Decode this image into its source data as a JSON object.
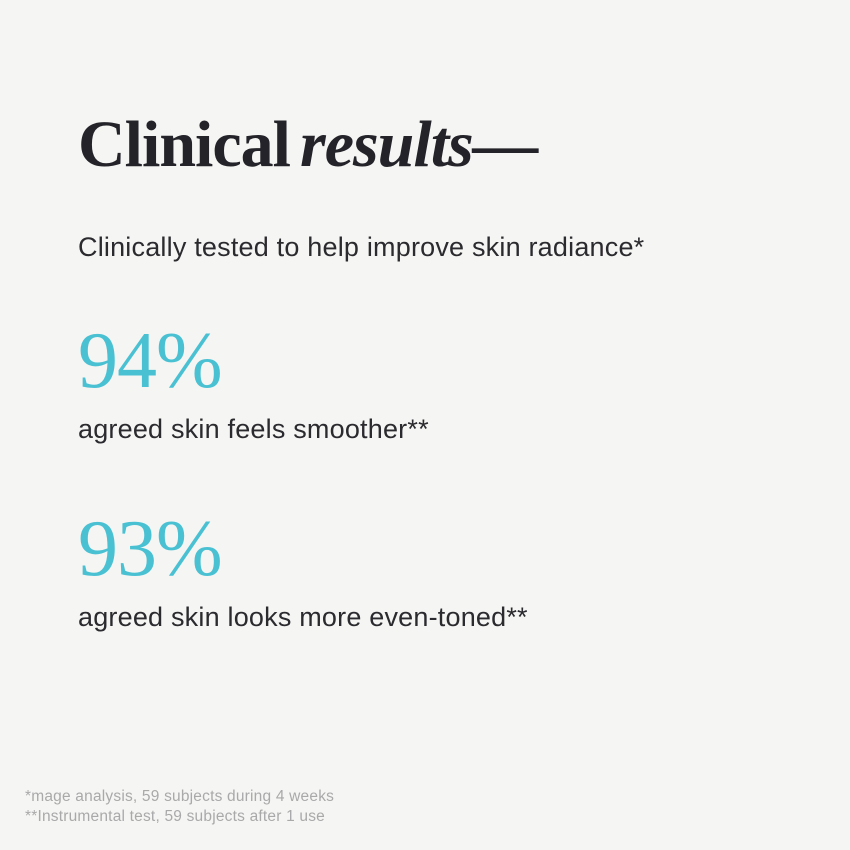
{
  "page": {
    "title": {
      "regular": "Clinical",
      "italic": "results—"
    },
    "subtitle": "Clinically tested to help improve skin radiance*",
    "stats": [
      {
        "value": "94%",
        "label": "agreed skin feels smoother**"
      },
      {
        "value": "93%",
        "label": "agreed skin looks more even-toned**"
      }
    ],
    "footnotes": [
      "*mage analysis, 59 subjects during 4 weeks",
      "**Instrumental test, 59 subjects after 1 use"
    ],
    "colors": {
      "background": "#f5f5f3",
      "text": "#2b2a2e",
      "title": "#242329",
      "accent": "#4ac1d3",
      "footnote": "#a9a9aa"
    }
  }
}
